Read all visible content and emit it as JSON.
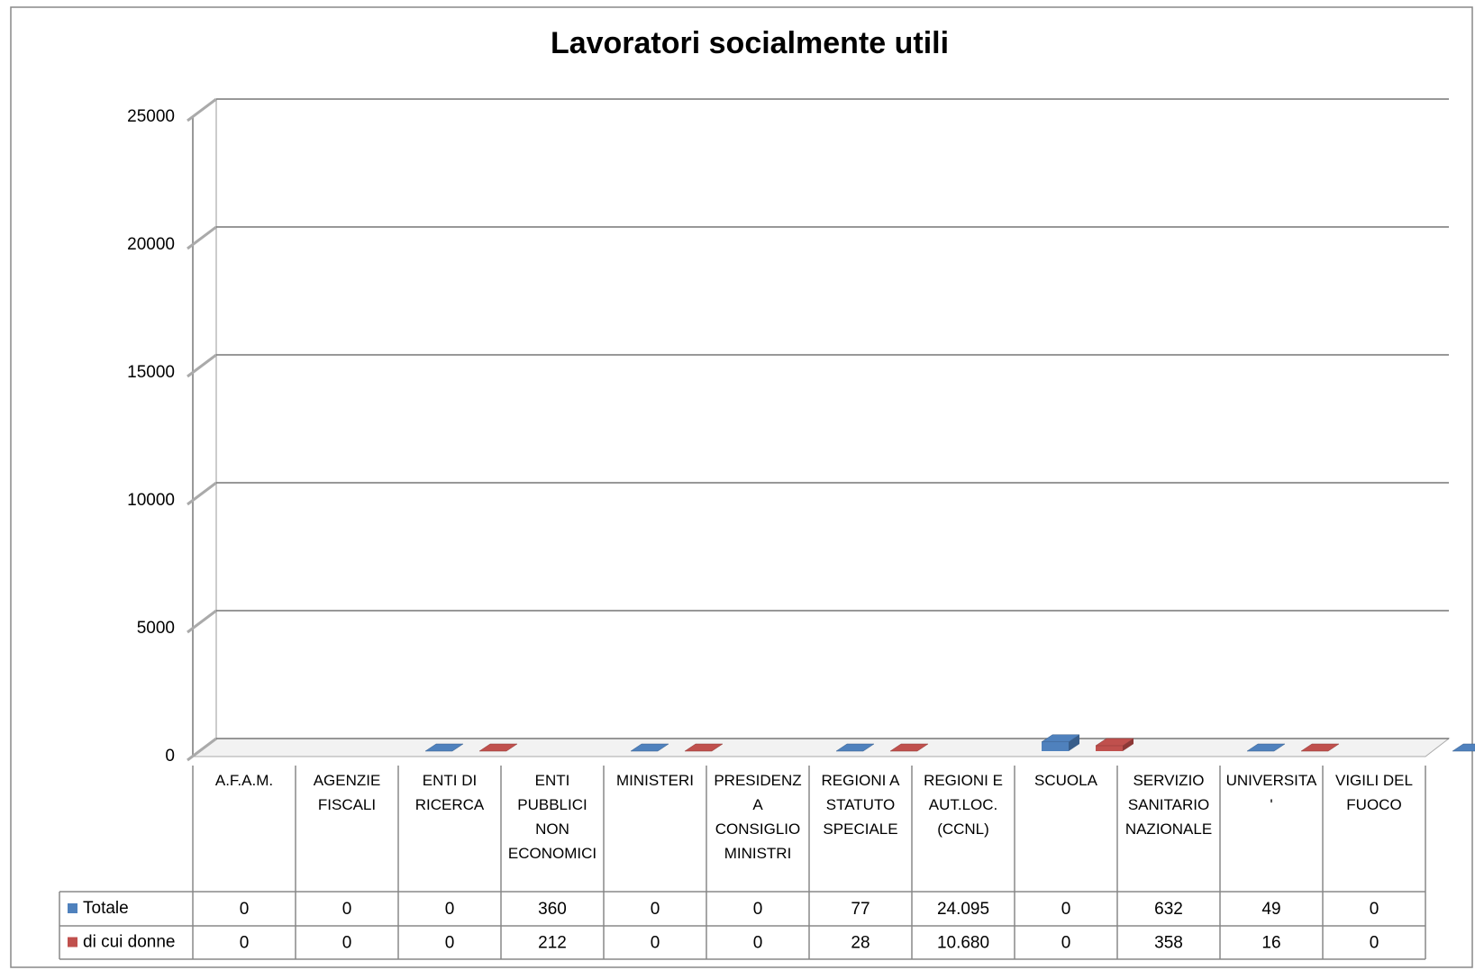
{
  "chart_data": {
    "type": "bar3d",
    "title": "Lavoratori socialmente utili",
    "categories": [
      "A.F.A.M.",
      "AGENZIE FISCALI",
      "ENTI DI RICERCA",
      "ENTI PUBBLICI NON ECONOMICI",
      "MINISTERI",
      "PRESIDENZA CONSIGLIO MINISTRI",
      "REGIONI A STATUTO SPECIALE",
      "REGIONI E AUT.LOC. (CCNL)",
      "SCUOLA",
      "SERVIZIO SANITARIO NAZIONALE",
      "UNIVERSITA'",
      "VIGILI DEL FUOCO"
    ],
    "series": [
      {
        "name": "Totale",
        "color": "#4f81bd",
        "side": "#385d8a",
        "values": [
          0,
          0,
          0,
          360,
          0,
          0,
          77,
          24095,
          0,
          632,
          49,
          0
        ],
        "value_labels": [
          "0",
          "0",
          "0",
          "360",
          "0",
          "0",
          "77",
          "24.095",
          "0",
          "632",
          "49",
          "0"
        ]
      },
      {
        "name": "di cui donne",
        "color": "#c0504d",
        "side": "#8c3836",
        "values": [
          0,
          0,
          0,
          212,
          0,
          0,
          28,
          10680,
          0,
          358,
          16,
          0
        ],
        "value_labels": [
          "0",
          "0",
          "0",
          "212",
          "0",
          "0",
          "28",
          "10.680",
          "0",
          "358",
          "16",
          "0"
        ]
      }
    ],
    "ylim": [
      0,
      25000
    ],
    "yticks": [
      0,
      5000,
      10000,
      15000,
      20000,
      25000
    ],
    "grid": true
  }
}
